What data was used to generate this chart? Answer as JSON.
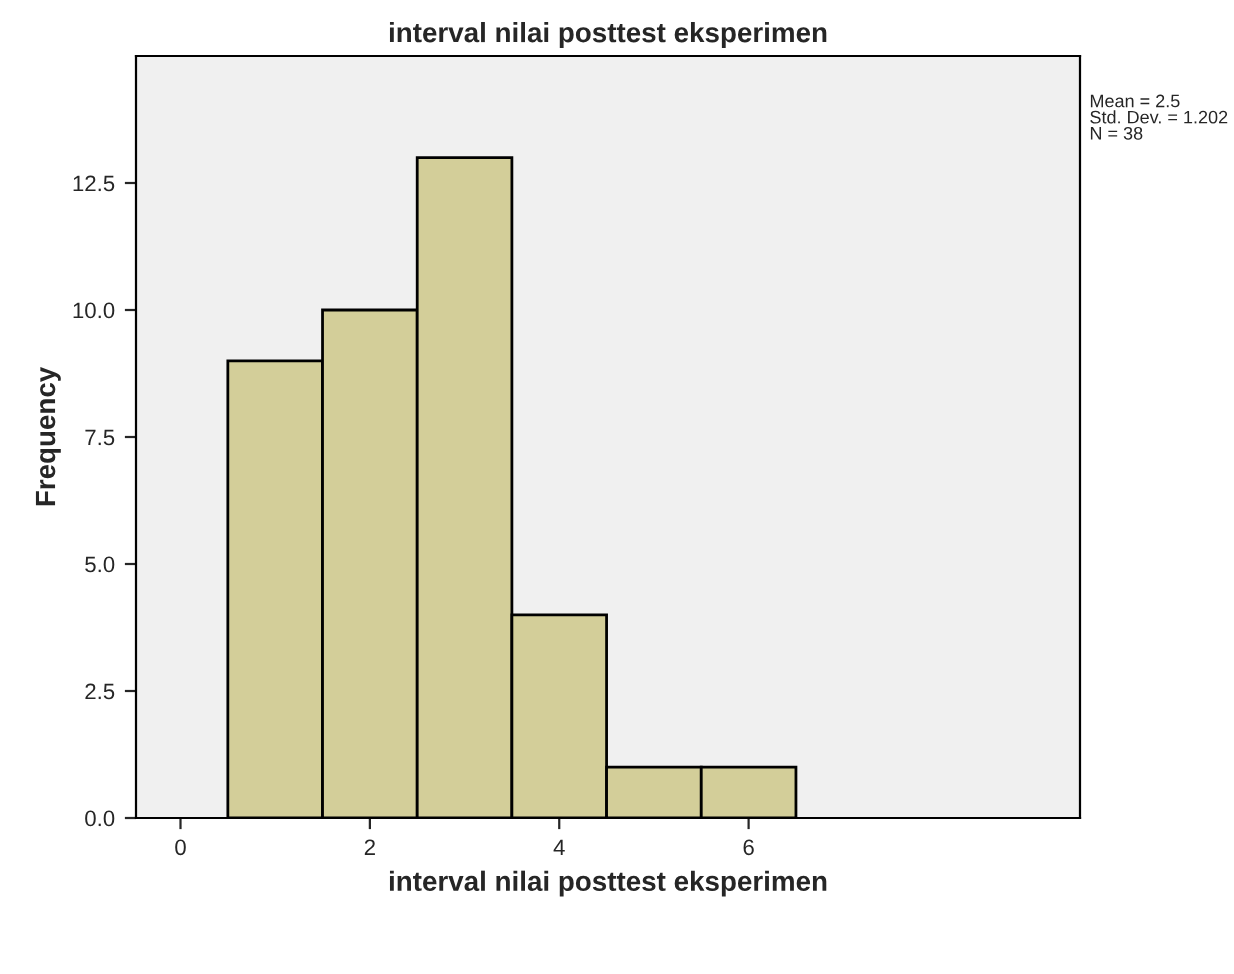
{
  "chart_data": {
    "type": "histogram",
    "title": "interval nilai posttest eksperimen",
    "xlabel": "interval nilai posttest eksperimen",
    "ylabel": "Frequency",
    "bins": [
      0.5,
      1.5,
      2.5,
      3.5,
      4.5,
      5.5,
      6.5
    ],
    "values": [
      9,
      10,
      13,
      4,
      1,
      1
    ],
    "color": "#d3ce99",
    "xlim": [
      -0.47,
      9.5
    ],
    "ylim": [
      0,
      15
    ],
    "xticks": [
      0,
      2,
      4,
      6
    ],
    "yticks": [
      {
        "value": 0,
        "label": "0.0"
      },
      {
        "value": 2.5,
        "label": "2.5"
      },
      {
        "value": 5,
        "label": "5.0"
      },
      {
        "value": 7.5,
        "label": "7.5"
      },
      {
        "value": 10,
        "label": "10.0"
      },
      {
        "value": 12.5,
        "label": "12.5"
      }
    ],
    "annotations": [
      "Mean = 2.5",
      "Std. Dev. = 1.202",
      "N = 38"
    ],
    "grid": false,
    "legend": false
  }
}
